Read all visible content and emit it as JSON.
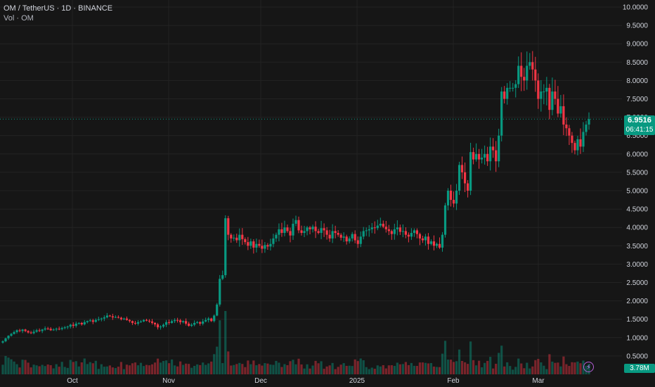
{
  "legend": {
    "symbol_line": "OM / TetherUS · 1D · BINANCE",
    "volume_line": "Vol · OM"
  },
  "last_price": {
    "value": "6.9516",
    "countdown": "06:41:15"
  },
  "last_volume": "3.78M",
  "colors": {
    "up": "#089981",
    "down": "#f23645",
    "background": "#161616",
    "grid": "#232323"
  },
  "icons": {
    "replay": "lightning-icon"
  },
  "chart_data": {
    "type": "candlestick",
    "title": "",
    "xlabel": "",
    "ylabel": "",
    "ylim": [
      0.5,
      10
    ],
    "y_ticks": [
      "10.0000",
      "9.5000",
      "9.0000",
      "8.5000",
      "8.0000",
      "7.5000",
      "7.0000",
      "6.5000",
      "6.0000",
      "5.5000",
      "5.0000",
      "4.5000",
      "4.0000",
      "3.5000",
      "3.0000",
      "2.5000",
      "2.0000",
      "1.5000",
      "1.0000",
      "0.5000"
    ],
    "x_ticks": [
      "Oct",
      "Nov",
      "Dec",
      "2025",
      "Feb",
      "Mar"
    ],
    "grid": true,
    "series_close": [
      0.9,
      0.98,
      1.05,
      1.1,
      1.15,
      1.2,
      1.18,
      1.22,
      1.18,
      1.14,
      1.12,
      1.16,
      1.2,
      1.18,
      1.22,
      1.25,
      1.24,
      1.2,
      1.22,
      1.24,
      1.23,
      1.26,
      1.28,
      1.3,
      1.35,
      1.32,
      1.38,
      1.4,
      1.36,
      1.42,
      1.45,
      1.47,
      1.43,
      1.48,
      1.5,
      1.52,
      1.55,
      1.6,
      1.58,
      1.55,
      1.56,
      1.54,
      1.5,
      1.52,
      1.48,
      1.45,
      1.4,
      1.38,
      1.42,
      1.44,
      1.48,
      1.46,
      1.44,
      1.4,
      1.36,
      1.28,
      1.3,
      1.35,
      1.42,
      1.4,
      1.45,
      1.48,
      1.47,
      1.42,
      1.45,
      1.38,
      1.32,
      1.35,
      1.4,
      1.42,
      1.38,
      1.44,
      1.48,
      1.52,
      1.45,
      1.6,
      1.9,
      2.6,
      2.7,
      4.25,
      3.8,
      3.7,
      3.72,
      3.65,
      3.8,
      3.68,
      3.6,
      3.5,
      3.62,
      3.45,
      3.55,
      3.5,
      3.42,
      3.52,
      3.48,
      3.55,
      3.7,
      3.8,
      3.95,
      3.85,
      4.0,
      3.9,
      3.78,
      4.1,
      4.2,
      3.92,
      3.85,
      3.9,
      4.0,
      3.95,
      4.02,
      3.9,
      3.85,
      3.98,
      3.92,
      3.8,
      3.7,
      3.9,
      3.85,
      3.8,
      3.72,
      3.75,
      3.62,
      3.7,
      3.82,
      3.65,
      3.55,
      3.75,
      3.9,
      3.92,
      3.95,
      4.0,
      3.98,
      4.05,
      4.1,
      4.02,
      3.95,
      3.9,
      3.82,
      3.95,
      4.0,
      3.88,
      3.9,
      3.8,
      3.75,
      3.85,
      3.92,
      3.82,
      3.7,
      3.65,
      3.75,
      3.55,
      3.62,
      3.5,
      3.55,
      3.45,
      3.8,
      4.6,
      5.0,
      4.75,
      4.65,
      5.0,
      5.7,
      5.5,
      5.2,
      5.0,
      6.05,
      5.85,
      6.0,
      5.85,
      5.9,
      6.0,
      5.8,
      6.2,
      6.1,
      5.8,
      6.5,
      7.7,
      7.5,
      7.8,
      7.8,
      7.8,
      7.9,
      8.4,
      8.1,
      8.0,
      8.4,
      8.5,
      8.3,
      8.0,
      7.5,
      7.7,
      7.7,
      7.8,
      7.2,
      7.7,
      7.5,
      7.1,
      7.3,
      6.8,
      6.7,
      6.5,
      6.3,
      6.1,
      6.4,
      6.2,
      6.6,
      6.8,
      6.95
    ],
    "volume_scale_max": 1.2,
    "volume_last": 3.78
  }
}
